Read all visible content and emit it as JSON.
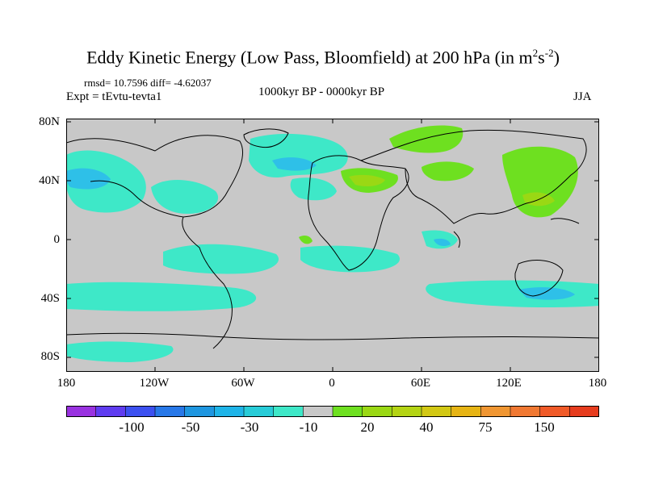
{
  "title": {
    "main": "Eddy Kinetic Energy (Low Pass, Bloomfield) at 200 hPa (in m",
    "sup1": "2",
    "mid": "s",
    "sup2": "-2",
    "close": ")"
  },
  "stats": "rmsd= 10.7596 diff= -4.62037",
  "experiment": "Expt = tEvtu-tevta1",
  "period": "1000kyr BP - 0000kyr BP",
  "season": "JJA",
  "map": {
    "background_color": "#c8c8c8",
    "lat_ticks": [
      "80N",
      "40N",
      "0",
      "40S",
      "80S"
    ],
    "lon_ticks": [
      "180",
      "120W",
      "60W",
      "0",
      "60E",
      "120E",
      "180"
    ],
    "negative_fill": "#3ee8c8",
    "negative_strong_fill": "#2ec0e8",
    "positive_fill": "#6ee020",
    "positive_strong_fill": "#9ad814"
  },
  "colorbar": {
    "colors": [
      "#9932e0",
      "#5f3cf0",
      "#3c50f0",
      "#2878e8",
      "#1e96e0",
      "#1eb4e8",
      "#28ccd8",
      "#3ee8c8",
      "#c8c8c8",
      "#6ee020",
      "#9ad814",
      "#b4d414",
      "#d2c814",
      "#e6b414",
      "#f09632",
      "#f07832",
      "#f05a28",
      "#e63c1e"
    ],
    "labels": [
      "-100",
      "-50",
      "-30",
      "-10",
      "20",
      "40",
      "75",
      "150"
    ]
  }
}
